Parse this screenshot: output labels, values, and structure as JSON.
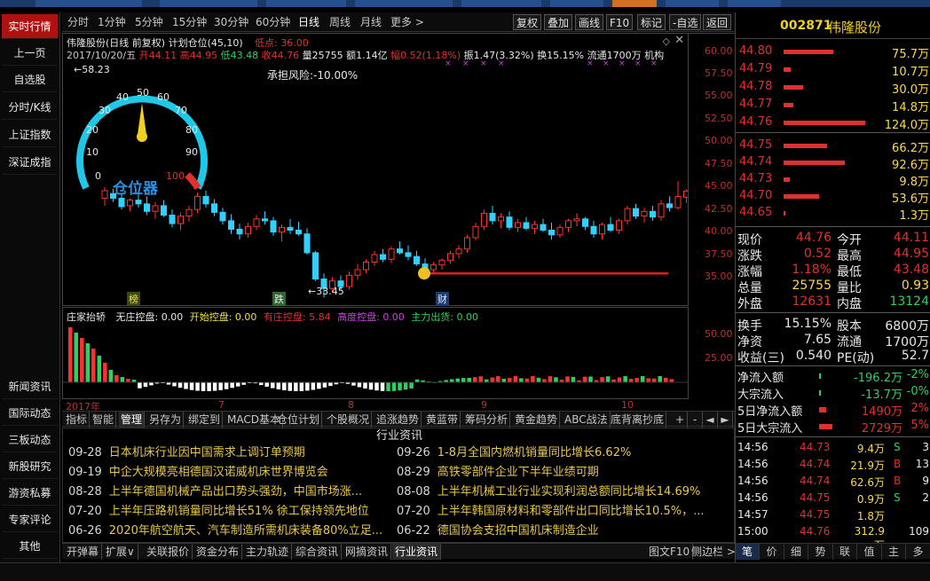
{
  "sidebar": {
    "items": [
      "实时行情",
      "上一页",
      "自选股",
      "分时/K线",
      "上证指数",
      "深证成指",
      "新闻资讯",
      "国际动态",
      "三板动态",
      "新股研究",
      "游资私募",
      "专家评论",
      "其他"
    ]
  },
  "periodbar": {
    "items": [
      "分时",
      "1分钟",
      "5分钟",
      "15分钟",
      "30分钟",
      "60分钟",
      "日线",
      "周线",
      "月线",
      "更多 >"
    ],
    "selected": "日线",
    "buttons": [
      "复权",
      "叠加",
      "画线",
      "F10",
      "标记",
      "-自选",
      "返回"
    ]
  },
  "chart": {
    "title_line": "伟隆股份(日线 前复权) 计划仓位(45,10)",
    "low_point_label": "低点: 36.00",
    "ohlc_line": {
      "date": "2017/10/20/五",
      "open": "开44.11",
      "high": "高44.95",
      "low": "低43.48",
      "close": "收44.76",
      "vol": "量25755",
      "amt": "额1.14亿",
      "chg": "幅0.52(1.18%)",
      "amp": "振1.47(3.32%)",
      "turnover": "换15.15%",
      "float": "流通1700万",
      "mech": "机构"
    },
    "risk_label": "承担风险:-10.00%",
    "gauge": {
      "label": "仓位器",
      "ticks": [
        "0",
        "10",
        "20",
        "30",
        "40",
        "50",
        "60",
        "70",
        "80",
        "90",
        "100"
      ],
      "value": 50
    },
    "low_marker": "33.45",
    "high_marker": "58.23",
    "events": [
      "榜",
      "跌",
      "财"
    ],
    "y_ticks": [
      "60.00",
      "57.50",
      "55.00",
      "52.50",
      "50.00",
      "47.50",
      "45.00",
      "42.50",
      "40.00",
      "37.50",
      "35.00"
    ],
    "colors": {
      "up": "#ff3030",
      "down": "#30d0ff",
      "flat": "#ffffff"
    }
  },
  "chart_data": {
    "type": "bar",
    "title": "伟隆股份(日线 前复权)",
    "ylim": [
      33,
      60
    ],
    "candles": [
      [
        44.0,
        45.2,
        43.2,
        44.8
      ],
      [
        44.5,
        45.0,
        43.6,
        44.0
      ],
      [
        44.0,
        44.5,
        42.8,
        43.1
      ],
      [
        43.2,
        44.0,
        42.6,
        43.8
      ],
      [
        43.8,
        44.8,
        43.0,
        43.4
      ],
      [
        43.4,
        44.2,
        42.2,
        42.6
      ],
      [
        42.6,
        43.6,
        41.8,
        43.2
      ],
      [
        43.2,
        43.8,
        42.0,
        42.2
      ],
      [
        42.2,
        42.8,
        40.9,
        41.3
      ],
      [
        41.3,
        42.5,
        40.6,
        42.1
      ],
      [
        42.1,
        43.2,
        41.5,
        42.8
      ],
      [
        42.8,
        44.6,
        42.4,
        44.2
      ],
      [
        44.2,
        44.8,
        43.0,
        43.4
      ],
      [
        43.4,
        43.9,
        42.1,
        42.5
      ],
      [
        42.5,
        43.0,
        41.2,
        41.6
      ],
      [
        41.6,
        42.3,
        40.2,
        40.7
      ],
      [
        40.7,
        41.3,
        39.6,
        40.2
      ],
      [
        40.2,
        41.4,
        39.8,
        41.0
      ],
      [
        41.0,
        42.2,
        40.6,
        41.8
      ],
      [
        41.8,
        42.6,
        41.2,
        41.6
      ],
      [
        41.6,
        42.0,
        40.0,
        40.4
      ],
      [
        40.4,
        41.2,
        39.4,
        40.9
      ],
      [
        40.9,
        41.8,
        40.2,
        40.6
      ],
      [
        40.6,
        41.5,
        40.0,
        40.2
      ],
      [
        40.2,
        40.8,
        38.0,
        38.2
      ],
      [
        38.2,
        38.4,
        35.2,
        35.4
      ],
      [
        35.4,
        36.0,
        33.45,
        34.4
      ],
      [
        34.4,
        35.6,
        34.0,
        35.2
      ],
      [
        35.2,
        35.8,
        34.2,
        34.6
      ],
      [
        34.6,
        36.2,
        34.3,
        35.8
      ],
      [
        35.8,
        37.0,
        35.3,
        36.4
      ],
      [
        36.4,
        37.5,
        36.0,
        37.2
      ],
      [
        37.2,
        38.4,
        36.8,
        38.0
      ],
      [
        38.0,
        38.6,
        37.2,
        37.5
      ],
      [
        37.5,
        38.9,
        37.1,
        38.6
      ],
      [
        38.6,
        39.4,
        38.0,
        38.2
      ],
      [
        38.2,
        39.0,
        37.4,
        37.8
      ],
      [
        37.8,
        38.4,
        36.8,
        37.0
      ],
      [
        37.0,
        37.6,
        36.0,
        36.4
      ],
      [
        36.4,
        37.2,
        36.0,
        36.9
      ],
      [
        36.9,
        37.6,
        36.4,
        37.4
      ],
      [
        37.4,
        38.4,
        37.0,
        38.1
      ],
      [
        38.1,
        39.0,
        37.6,
        38.6
      ],
      [
        38.6,
        40.1,
        38.2,
        39.8
      ],
      [
        39.8,
        41.4,
        39.5,
        41.0
      ],
      [
        41.0,
        42.8,
        40.6,
        42.4
      ],
      [
        42.4,
        43.2,
        41.2,
        41.6
      ],
      [
        41.6,
        42.4,
        40.8,
        42.0
      ],
      [
        42.0,
        42.6,
        40.6,
        40.9
      ],
      [
        40.9,
        41.8,
        40.4,
        41.4
      ],
      [
        41.4,
        42.0,
        40.6,
        40.8
      ],
      [
        40.8,
        41.6,
        40.2,
        41.2
      ],
      [
        41.2,
        41.8,
        40.4,
        40.6
      ],
      [
        40.6,
        41.4,
        39.6,
        40.1
      ],
      [
        40.1,
        41.2,
        39.8,
        40.9
      ],
      [
        40.9,
        41.8,
        40.4,
        41.6
      ],
      [
        41.6,
        42.4,
        41.0,
        41.8
      ],
      [
        41.8,
        42.0,
        40.6,
        41.0
      ],
      [
        41.0,
        41.6,
        39.8,
        40.2
      ],
      [
        40.2,
        41.4,
        39.6,
        41.2
      ],
      [
        41.2,
        42.0,
        40.4,
        40.6
      ],
      [
        40.6,
        41.8,
        40.2,
        41.6
      ],
      [
        41.6,
        43.2,
        41.2,
        42.9
      ],
      [
        42.9,
        43.4,
        41.8,
        42.1
      ],
      [
        42.1,
        43.0,
        41.4,
        42.6
      ],
      [
        42.6,
        43.2,
        41.6,
        42.0
      ],
      [
        42.0,
        43.8,
        41.6,
        43.4
      ],
      [
        43.4,
        44.2,
        42.6,
        43.0
      ],
      [
        43.0,
        45.8,
        42.8,
        44.2
      ],
      [
        44.11,
        44.95,
        43.48,
        44.76
      ]
    ],
    "indicator": {
      "name": "庄家抬轿",
      "series": [
        {
          "name": "无庄控盘",
          "value": "0.00"
        },
        {
          "name": "开始控盘",
          "value": "0.00"
        },
        {
          "name": "有庄控盘",
          "value": "5.84"
        },
        {
          "name": "高度控盘",
          "value": "0.00"
        },
        {
          "name": "主力出货",
          "value": "0.00"
        }
      ],
      "y_ticks": [
        "50.00",
        "25.00"
      ]
    },
    "x_labels": [
      "2017年",
      "7",
      "8",
      "9",
      "10"
    ]
  },
  "tabbar": {
    "items": [
      "指标",
      "智能",
      "管理",
      "另存为",
      "绑定到",
      "MACD基本",
      "仓位计划",
      "个股概况",
      "追涨趋势",
      "黄蓝带",
      "筹码分析",
      "黄金趋势",
      "ABC战法",
      "底背离抄底"
    ],
    "selected": "管理",
    "right": [
      "+",
      "-",
      "◄",
      "►"
    ]
  },
  "news": {
    "title": "行业资讯",
    "left": [
      {
        "date": "09-28",
        "text": "日本机床行业因中国需求上调订单预期"
      },
      {
        "date": "09-19",
        "text": "中企大规模亮相德国汉诺威机床世界博览会"
      },
      {
        "date": "08-28",
        "text": "上半年德国机械产品出口势头强劲，中国市场涨..."
      },
      {
        "date": "07-20",
        "text": "上半年压路机销量同比增长51% 徐工保持领先地位"
      },
      {
        "date": "06-26",
        "text": "2020年航空航天、汽车制造所需机床装备80%立足..."
      }
    ],
    "right": [
      {
        "date": "09-26",
        "text": "1-8月全国内燃机销量同比增长6.62%"
      },
      {
        "date": "08-29",
        "text": "高铁零部件企业下半年业绩可期"
      },
      {
        "date": "08-08",
        "text": "上半年机械工业行业实现利润总额同比增长14.69%"
      },
      {
        "date": "07-20",
        "text": "上半年韩国原材料和零部件出口同比增长10.5%，..."
      },
      {
        "date": "06-22",
        "text": "德国协会支招中国机床制造企业"
      }
    ]
  },
  "bottombar": {
    "items": [
      "开弹幕",
      "扩展∨",
      "关联报价",
      "资金分布",
      "主力轨迹",
      "综合资讯",
      "网摘资讯",
      "行业资讯"
    ],
    "selected": "行业资讯",
    "right": [
      "图文F10",
      "侧边栏 >"
    ]
  },
  "quote": {
    "code": "002871",
    "name": "伟隆股份",
    "asks": [
      {
        "price": "44.80",
        "vol": "75.7万",
        "w": 0.61
      },
      {
        "price": "44.79",
        "vol": "10.7万",
        "w": 0.09
      },
      {
        "price": "44.78",
        "vol": "30.0万",
        "w": 0.24
      },
      {
        "price": "44.77",
        "vol": "14.8万",
        "w": 0.12
      },
      {
        "price": "44.76",
        "vol": "124.0万",
        "w": 1.0
      }
    ],
    "bids": [
      {
        "price": "44.75",
        "vol": "66.2万",
        "w": 0.53
      },
      {
        "price": "44.74",
        "vol": "92.6万",
        "w": 0.75
      },
      {
        "price": "44.73",
        "vol": "9.8万",
        "w": 0.08
      },
      {
        "price": "44.70",
        "vol": "53.6万",
        "w": 0.43
      },
      {
        "price": "44.65",
        "vol": "1.3万",
        "w": 0.01
      }
    ],
    "stats": [
      {
        "k": "现价",
        "v": "44.76",
        "k2": "今开",
        "v2": "44.11"
      },
      {
        "k": "涨跌",
        "v": "0.52",
        "k2": "最高",
        "v2": "44.95"
      },
      {
        "k": "涨幅",
        "v": "1.18%",
        "k2": "最低",
        "v2": "43.48"
      },
      {
        "k": "总量",
        "v": "25755",
        "k2": "量比",
        "v2": "0.93"
      },
      {
        "k": "外盘",
        "v": "12631",
        "k2": "内盘",
        "v2": "13124"
      }
    ],
    "stats2": [
      {
        "k": "换手",
        "v": "15.15%",
        "k2": "股本",
        "v2": "6800万"
      },
      {
        "k": "净资",
        "v": "7.65",
        "k2": "流通",
        "v2": "1700万"
      },
      {
        "k": "收益(三)",
        "v": "0.540",
        "k2": "PE(动)",
        "v2": "52.7"
      }
    ],
    "flows": [
      {
        "k": "净流入额",
        "v": "-196.2万",
        "p": "-2%",
        "bar": 0,
        "color": "green"
      },
      {
        "k": "大宗流入",
        "v": "-13.7万",
        "p": "-0%",
        "bar": 0,
        "color": "green"
      },
      {
        "k": "5日净流入额",
        "v": "1490万",
        "p": "2%",
        "bar": 0.4,
        "color": "red"
      },
      {
        "k": "5日大宗流入",
        "v": "2729万",
        "p": "5%",
        "bar": 0.8,
        "color": "red"
      }
    ],
    "ticks": [
      {
        "t": "14:56",
        "p": "44.73",
        "v": "9.4万",
        "s": "S"
      },
      {
        "t": "14:56",
        "p": "44.74",
        "v": "21.9万",
        "s": "B"
      },
      {
        "t": "14:56",
        "p": "44.74",
        "v": "62.6万",
        "s": "B"
      },
      {
        "t": "14:56",
        "p": "44.75",
        "v": "0.9万",
        "s": "S"
      },
      {
        "t": "14:57",
        "p": "44.75",
        "v": "1.8万",
        "s": ""
      },
      {
        "t": "15:00",
        "p": "44.76",
        "v": "312.9万",
        "s": ""
      }
    ],
    "tick_tail": [
      "3",
      "13",
      "9",
      "2",
      "",
      "109"
    ],
    "bottom_tabs": [
      "笔",
      "价",
      "细",
      "势",
      "联",
      "值",
      "主",
      "多"
    ]
  }
}
